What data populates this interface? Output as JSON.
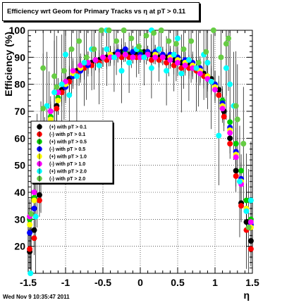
{
  "title": "Efficiency wrt Geom for Primary Tracks vs   η at pT > 0.11",
  "timestamp": "Wed Nov  9 10:35:47 2011",
  "chart_data": {
    "type": "scatter",
    "xlabel": "η",
    "ylabel": "Efficiency (%)",
    "xlim": [
      -1.5,
      1.5
    ],
    "ylim": [
      10,
      100
    ],
    "x_ticks": [
      "-1.5",
      "-1",
      "-0.5",
      "0",
      "0.5",
      "1",
      "1.5"
    ],
    "x_tick_values": [
      -1.5,
      -1,
      -0.5,
      0,
      0.5,
      1,
      1.5
    ],
    "y_ticks": [
      "20",
      "30",
      "40",
      "50",
      "60",
      "70",
      "80",
      "90",
      "100"
    ],
    "y_tick_values": [
      20,
      30,
      40,
      50,
      60,
      70,
      80,
      90,
      100
    ],
    "grid": true,
    "legend_position": "left-middle",
    "series": [
      {
        "name": "(+) with pT > 0.1",
        "color": "#000000",
        "points": [
          [
            -1.48,
            18
          ],
          [
            -1.42,
            26
          ],
          [
            -1.35,
            39
          ],
          [
            -1.28,
            50
          ],
          [
            -1.2,
            63
          ],
          [
            -1.12,
            72
          ],
          [
            -1.05,
            78
          ],
          [
            -0.95,
            82
          ],
          [
            -0.85,
            85
          ],
          [
            -0.75,
            87
          ],
          [
            -0.65,
            88
          ],
          [
            -0.55,
            89
          ],
          [
            -0.45,
            90
          ],
          [
            -0.35,
            91
          ],
          [
            -0.25,
            92
          ],
          [
            -0.15,
            91
          ],
          [
            -0.05,
            91
          ],
          [
            0.05,
            92
          ],
          [
            0.15,
            91
          ],
          [
            0.25,
            90
          ],
          [
            0.35,
            90
          ],
          [
            0.45,
            89
          ],
          [
            0.55,
            88
          ],
          [
            0.65,
            87
          ],
          [
            0.75,
            86
          ],
          [
            0.85,
            84
          ],
          [
            0.95,
            82
          ],
          [
            1.05,
            78
          ],
          [
            1.12,
            70
          ],
          [
            1.2,
            60
          ],
          [
            1.28,
            48
          ],
          [
            1.35,
            36
          ],
          [
            1.42,
            29
          ],
          [
            1.48,
            22
          ]
        ]
      },
      {
        "name": "(-) with pT > 0.1",
        "color": "#ff0000",
        "points": [
          [
            -1.48,
            19
          ],
          [
            -1.42,
            23
          ],
          [
            -1.35,
            37
          ],
          [
            -1.28,
            50
          ],
          [
            -1.2,
            62
          ],
          [
            -1.12,
            71
          ],
          [
            -1.05,
            77
          ],
          [
            -0.95,
            81
          ],
          [
            -0.85,
            84
          ],
          [
            -0.75,
            86
          ],
          [
            -0.65,
            87
          ],
          [
            -0.55,
            88
          ],
          [
            -0.45,
            89
          ],
          [
            -0.35,
            90
          ],
          [
            -0.25,
            90
          ],
          [
            -0.15,
            90
          ],
          [
            -0.05,
            90
          ],
          [
            0.05,
            90
          ],
          [
            0.15,
            89
          ],
          [
            0.25,
            89
          ],
          [
            0.35,
            88
          ],
          [
            0.45,
            87
          ],
          [
            0.55,
            86
          ],
          [
            0.65,
            86
          ],
          [
            0.75,
            85
          ],
          [
            0.85,
            83
          ],
          [
            0.95,
            81
          ],
          [
            1.05,
            76
          ],
          [
            1.12,
            68
          ],
          [
            1.2,
            58
          ],
          [
            1.28,
            46
          ],
          [
            1.35,
            35
          ],
          [
            1.42,
            26
          ],
          [
            1.48,
            19
          ]
        ]
      },
      {
        "name": "(+) with pT > 0.5",
        "color": "#00cc00",
        "points": [
          [
            -1.48,
            30
          ],
          [
            -1.42,
            38
          ],
          [
            -1.35,
            50
          ],
          [
            -1.28,
            60
          ],
          [
            -1.2,
            68
          ],
          [
            -1.1,
            75
          ],
          [
            -1.0,
            80
          ],
          [
            -0.9,
            84
          ],
          [
            -0.8,
            86
          ],
          [
            -0.7,
            88
          ],
          [
            -0.6,
            89
          ],
          [
            -0.5,
            90
          ],
          [
            -0.4,
            91
          ],
          [
            -0.3,
            92
          ],
          [
            -0.2,
            92
          ],
          [
            -0.1,
            92
          ],
          [
            0.0,
            92
          ],
          [
            0.1,
            92
          ],
          [
            0.2,
            92
          ],
          [
            0.3,
            91
          ],
          [
            0.4,
            90
          ],
          [
            0.5,
            89
          ],
          [
            0.6,
            88
          ],
          [
            0.7,
            87
          ],
          [
            0.8,
            85
          ],
          [
            0.9,
            83
          ],
          [
            1.0,
            80
          ],
          [
            1.1,
            74
          ],
          [
            1.2,
            66
          ],
          [
            1.28,
            58
          ],
          [
            1.35,
            48
          ],
          [
            1.42,
            37
          ],
          [
            1.48,
            30
          ]
        ]
      },
      {
        "name": "(-) with pT > 0.5",
        "color": "#0000ff",
        "points": [
          [
            -1.48,
            25
          ],
          [
            -1.42,
            34
          ],
          [
            -1.35,
            46
          ],
          [
            -1.28,
            57
          ],
          [
            -1.2,
            66
          ],
          [
            -1.1,
            74
          ],
          [
            -1.0,
            79
          ],
          [
            -0.9,
            83
          ],
          [
            -0.8,
            85
          ],
          [
            -0.7,
            87
          ],
          [
            -0.6,
            89
          ],
          [
            -0.5,
            90
          ],
          [
            -0.4,
            91
          ],
          [
            -0.3,
            92
          ],
          [
            -0.2,
            93
          ],
          [
            -0.1,
            92
          ],
          [
            0.0,
            91
          ],
          [
            0.1,
            92
          ],
          [
            0.2,
            92
          ],
          [
            0.3,
            91
          ],
          [
            0.4,
            91
          ],
          [
            0.5,
            90
          ],
          [
            0.6,
            89
          ],
          [
            0.7,
            88
          ],
          [
            0.8,
            86
          ],
          [
            0.9,
            83
          ],
          [
            1.0,
            80
          ],
          [
            1.1,
            73
          ],
          [
            1.2,
            64
          ],
          [
            1.28,
            55
          ],
          [
            1.35,
            45
          ],
          [
            1.42,
            34
          ],
          [
            1.48,
            28
          ]
        ]
      },
      {
        "name": "(+) with pT > 1.0",
        "color": "#ffff00",
        "points": [
          [
            -1.48,
            28
          ],
          [
            -1.42,
            37
          ],
          [
            -1.35,
            48
          ],
          [
            -1.28,
            58
          ],
          [
            -1.2,
            67
          ],
          [
            -1.1,
            74
          ],
          [
            -1.0,
            80
          ],
          [
            -0.9,
            84
          ],
          [
            -0.8,
            86
          ],
          [
            -0.7,
            88
          ],
          [
            -0.6,
            89
          ],
          [
            -0.5,
            90
          ],
          [
            -0.4,
            91
          ],
          [
            -0.3,
            91
          ],
          [
            -0.2,
            91
          ],
          [
            -0.1,
            90
          ],
          [
            0.0,
            90
          ],
          [
            0.1,
            91
          ],
          [
            0.2,
            91
          ],
          [
            0.3,
            90
          ],
          [
            0.4,
            90
          ],
          [
            0.5,
            89
          ],
          [
            0.6,
            88
          ],
          [
            0.7,
            87
          ],
          [
            0.8,
            85
          ],
          [
            0.9,
            83
          ],
          [
            1.0,
            79
          ],
          [
            1.1,
            72
          ],
          [
            1.2,
            63
          ],
          [
            1.28,
            54
          ],
          [
            1.35,
            44
          ],
          [
            1.42,
            34
          ],
          [
            1.48,
            27
          ]
        ]
      },
      {
        "name": "(-) with pT > 1.0",
        "color": "#ff00ff",
        "points": [
          [
            -1.48,
            31
          ],
          [
            -1.42,
            40
          ],
          [
            -1.35,
            52
          ],
          [
            -1.28,
            62
          ],
          [
            -1.2,
            70
          ],
          [
            -1.1,
            77
          ],
          [
            -1.0,
            81
          ],
          [
            -0.9,
            85
          ],
          [
            -0.8,
            87
          ],
          [
            -0.7,
            88
          ],
          [
            -0.6,
            89
          ],
          [
            -0.5,
            90
          ],
          [
            -0.4,
            90
          ],
          [
            -0.3,
            91
          ],
          [
            -0.2,
            91
          ],
          [
            -0.1,
            90
          ],
          [
            0.0,
            90
          ],
          [
            0.1,
            91
          ],
          [
            0.2,
            90
          ],
          [
            0.3,
            90
          ],
          [
            0.4,
            89
          ],
          [
            0.5,
            88
          ],
          [
            0.6,
            87
          ],
          [
            0.7,
            86
          ],
          [
            0.8,
            84
          ],
          [
            0.9,
            82
          ],
          [
            1.0,
            78
          ],
          [
            1.1,
            71
          ],
          [
            1.2,
            62
          ],
          [
            1.28,
            53
          ],
          [
            1.35,
            43
          ],
          [
            1.42,
            33
          ],
          [
            1.48,
            29
          ]
        ]
      },
      {
        "name": "(+) with pT > 2.0",
        "color": "#00ffff",
        "points": [
          [
            -1.47,
            10
          ],
          [
            -1.4,
            31
          ],
          [
            -1.33,
            53
          ],
          [
            -1.25,
            72
          ],
          [
            -1.15,
            77
          ],
          [
            -1.05,
            80
          ],
          [
            -0.95,
            76
          ],
          [
            -0.85,
            83
          ],
          [
            -0.75,
            88
          ],
          [
            -0.65,
            93
          ],
          [
            -0.55,
            87
          ],
          [
            -0.45,
            93
          ],
          [
            -0.35,
            90
          ],
          [
            -0.25,
            85
          ],
          [
            -0.15,
            88
          ],
          [
            -0.05,
            93
          ],
          [
            0.05,
            90
          ],
          [
            0.15,
            86
          ],
          [
            0.25,
            93
          ],
          [
            0.35,
            85
          ],
          [
            0.45,
            91
          ],
          [
            0.55,
            84
          ],
          [
            0.65,
            89
          ],
          [
            0.75,
            86
          ],
          [
            0.85,
            91
          ],
          [
            0.95,
            81
          ],
          [
            1.05,
            61
          ],
          [
            1.15,
            86
          ],
          [
            1.25,
            72
          ],
          [
            1.33,
            44
          ],
          [
            1.42,
            33
          ],
          [
            1.48,
            37
          ],
          [
            -0.45,
            100
          ],
          [
            0.15,
            100
          ],
          [
            0.5,
            97
          ],
          [
            -1.0,
            91
          ],
          [
            0.9,
            88
          ],
          [
            1.2,
            80
          ]
        ]
      },
      {
        "name": "(-) with pT > 2.0",
        "color": "#66cc44",
        "points": [
          [
            -1.46,
            32
          ],
          [
            -1.38,
            48
          ],
          [
            -1.3,
            71
          ],
          [
            -1.22,
            65
          ],
          [
            -1.12,
            79
          ],
          [
            -1.02,
            85
          ],
          [
            -0.92,
            93
          ],
          [
            -0.82,
            96
          ],
          [
            -0.72,
            90
          ],
          [
            -0.62,
            93
          ],
          [
            -0.52,
            100
          ],
          [
            -0.42,
            100
          ],
          [
            -0.32,
            96
          ],
          [
            -0.22,
            100
          ],
          [
            -0.12,
            97
          ],
          [
            -0.02,
            94
          ],
          [
            0.08,
            98
          ],
          [
            0.18,
            99
          ],
          [
            0.28,
            100
          ],
          [
            0.38,
            96
          ],
          [
            0.48,
            95
          ],
          [
            0.58,
            93
          ],
          [
            0.68,
            96
          ],
          [
            0.78,
            88
          ],
          [
            0.88,
            92
          ],
          [
            0.98,
            100
          ],
          [
            1.08,
            90
          ],
          [
            1.18,
            97
          ],
          [
            1.28,
            72
          ],
          [
            1.38,
            58
          ],
          [
            1.45,
            27
          ],
          [
            1.3,
            67
          ],
          [
            1.15,
            95
          ],
          [
            -1.3,
            86
          ],
          [
            -1.15,
            83
          ]
        ]
      }
    ]
  }
}
